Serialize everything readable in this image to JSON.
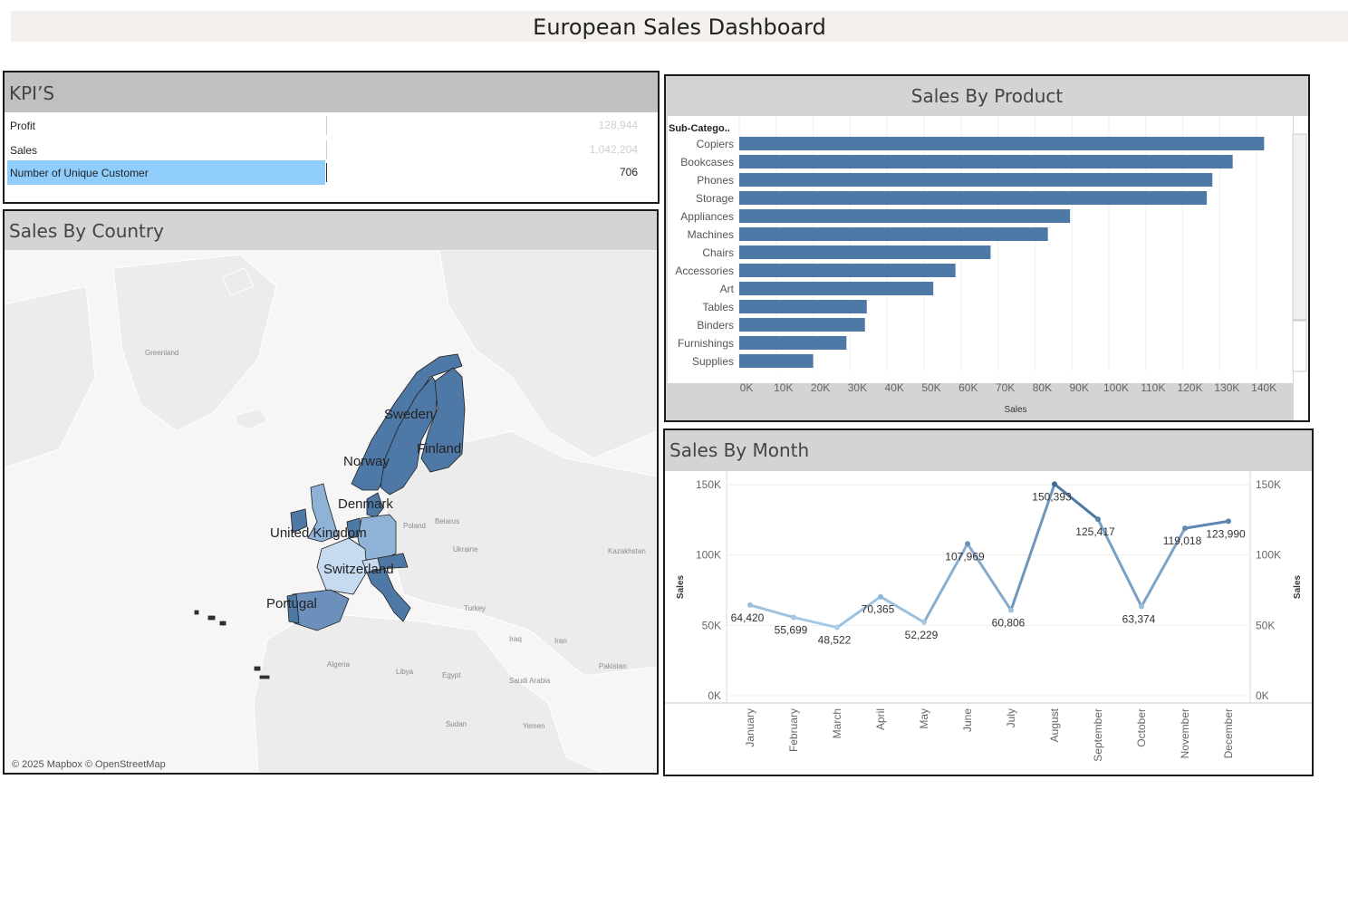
{
  "dashboard": {
    "title": "European Sales Dashboard"
  },
  "kpi": {
    "title": "KPI’S",
    "rows": [
      {
        "label": "Profit",
        "value": "128,944",
        "selected": false
      },
      {
        "label": "Sales",
        "value": "1,042,204",
        "selected": false
      },
      {
        "label": "Number of Unique Customer",
        "value": "706",
        "selected": true
      }
    ]
  },
  "country": {
    "title": "Sales By Country",
    "countries": [
      "Sweden",
      "Finland",
      "Norway",
      "Denmark",
      "United Kingdom",
      "Switzerland",
      "Portugal"
    ],
    "background_labels": [
      "Greenland",
      "Poland",
      "Belarus",
      "Ukraine",
      "Kazakhstan",
      "Turkey",
      "Iraq",
      "Iran",
      "Algeria",
      "Libya",
      "Egypt",
      "Saudi Arabia",
      "Pakistan",
      "Sudan",
      "Yemen"
    ],
    "credit": "© 2025 Mapbox © OpenStreetMap",
    "colors": {
      "dark": "#4e79a7",
      "light": "#c6dbef",
      "mid": "#8fb3d6"
    }
  },
  "product": {
    "title": "Sales By Product",
    "chart_data": {
      "type": "bar",
      "orientation": "horizontal",
      "dimension_header": "Sub-Catego..",
      "categories": [
        "Copiers",
        "Bookcases",
        "Phones",
        "Storage",
        "Appliances",
        "Machines",
        "Chairs",
        "Accessories",
        "Art",
        "Tables",
        "Binders",
        "Furnishings",
        "Supplies"
      ],
      "values": [
        142000,
        133500,
        128000,
        126500,
        89500,
        83500,
        68000,
        58500,
        52500,
        34500,
        34000,
        29000,
        20000
      ],
      "xlabel": "Sales",
      "xlim": [
        0,
        150000
      ],
      "ticks": [
        "0K",
        "10K",
        "20K",
        "30K",
        "40K",
        "50K",
        "60K",
        "70K",
        "80K",
        "90K",
        "100K",
        "110K",
        "120K",
        "130K",
        "140K"
      ],
      "color": "#4e79a7"
    }
  },
  "month": {
    "title": "Sales By Month",
    "chart_data": {
      "type": "line",
      "categories": [
        "January",
        "February",
        "March",
        "April",
        "May",
        "June",
        "July",
        "August",
        "September",
        "October",
        "November",
        "December"
      ],
      "values": [
        64420,
        55699,
        48522,
        70365,
        52229,
        107969,
        60806,
        150393,
        125417,
        63374,
        119018,
        123990
      ],
      "labels": [
        "64,420",
        "55,699",
        "48,522",
        "70,365",
        "52,229",
        "107,969",
        "60,806",
        "150,393",
        "125,417",
        "63,374",
        "119,018",
        "123,990"
      ],
      "ylabel": "Sales",
      "ylim": [
        0,
        150000
      ],
      "yticks": [
        "0K",
        "50K",
        "100K",
        "150K"
      ],
      "color_low": "#a9cde8",
      "color_high": "#3f6a9a"
    }
  }
}
